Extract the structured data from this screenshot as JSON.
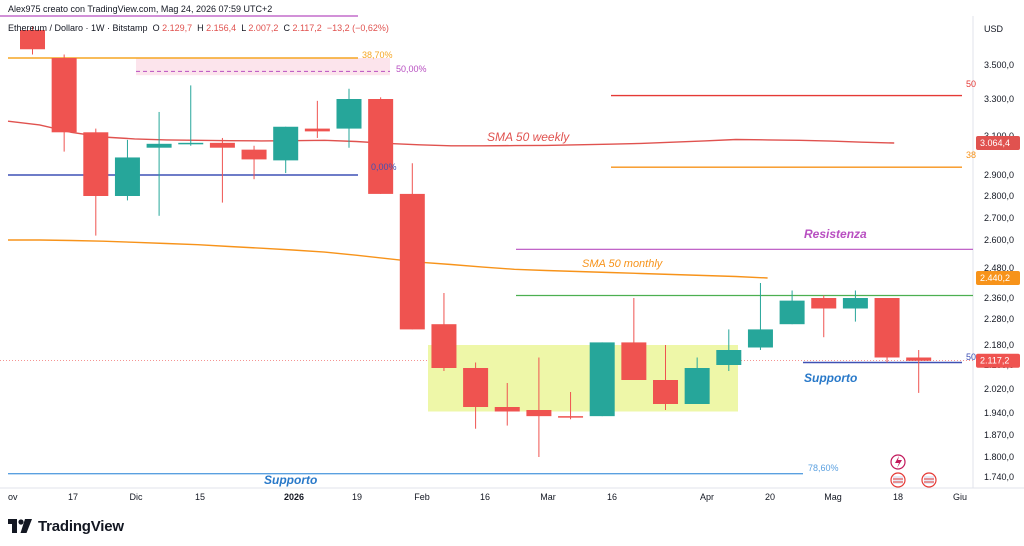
{
  "header": {
    "attribution": "Alex975 creato con TradingView.com, Mag 24, 2026 07:59 UTC+2",
    "symbol": "Ethereum / Dollaro · 1W · Bitstamp",
    "o_label": "O",
    "o_value": "2.129,7",
    "h_label": "H",
    "h_value": "2.156,4",
    "l_label": "L",
    "l_value": "2.007,2",
    "c_label": "C",
    "c_value": "2.117,2",
    "change": "−13,2 (−0,62%)"
  },
  "axis": {
    "currency": "USD",
    "price_labels": [
      "3.500,0",
      "3.300,0",
      "3.100,0",
      "2.900,0",
      "2.800,0",
      "2.700,0",
      "2.600,0",
      "2.480,0",
      "2.360,0",
      "2.280,0",
      "2.180,0",
      "2.100,0",
      "2.020,0",
      "1.940,0",
      "1.870,0",
      "1.800,0",
      "1.740,0"
    ],
    "time_labels": [
      "ov",
      "17",
      "Dic",
      "15",
      "2026",
      "19",
      "Feb",
      "16",
      "Mar",
      "16",
      "Apr",
      "20",
      "Mag",
      "18",
      "Giu"
    ]
  },
  "badges": {
    "sma_weekly_value": "3.064,4",
    "sma_monthly_value": "2.440,2",
    "last_price_value": "2.117,2"
  },
  "annotations": {
    "sma_weekly": "SMA 50 weekly",
    "sma_monthly": "SMA 50 monthly",
    "resistance": "Resistenza",
    "support_right": "Supporto",
    "support_bottom": "Supporto",
    "fib_3870": "38,70%",
    "fib_50": "50,00%",
    "fib_0": "0,00%",
    "fib_7860": "78,60%",
    "edge_50": "50",
    "edge_38": "38",
    "edge_50b": "50"
  },
  "brand": {
    "name": "TradingView"
  },
  "colors": {
    "up": "#26a69a",
    "down": "#ef5350",
    "sma_weekly": "#e0524f",
    "sma_monthly": "#f7931a",
    "resistance": "#b84fc1",
    "support": "#2196f3",
    "green_line": "#4caf50",
    "zone": "#eef7a8"
  },
  "chart_data": {
    "type": "candlestick",
    "title": "Ethereum / Dollaro · 1W · Bitstamp",
    "ylabel": "USD",
    "ylim": [
      1720,
      3620
    ],
    "candles": [
      {
        "o": 3700,
        "h": 3720,
        "l": 3560,
        "c": 3590
      },
      {
        "o": 3540,
        "h": 3560,
        "l": 3020,
        "c": 3120
      },
      {
        "o": 3120,
        "h": 3140,
        "l": 2620,
        "c": 2800
      },
      {
        "o": 2800,
        "h": 3080,
        "l": 2780,
        "c": 2990
      },
      {
        "o": 3040,
        "h": 3230,
        "l": 2710,
        "c": 3060
      },
      {
        "o": 3060,
        "h": 3380,
        "l": 3050,
        "c": 3065
      },
      {
        "o": 3065,
        "h": 3090,
        "l": 2770,
        "c": 3040
      },
      {
        "o": 3030,
        "h": 3050,
        "l": 2880,
        "c": 2980
      },
      {
        "o": 2975,
        "h": 3150,
        "l": 2910,
        "c": 3150
      },
      {
        "o": 3140,
        "h": 3290,
        "l": 3090,
        "c": 3125
      },
      {
        "o": 3140,
        "h": 3360,
        "l": 3040,
        "c": 3300
      },
      {
        "o": 3300,
        "h": 3310,
        "l": 2810,
        "c": 2810
      },
      {
        "o": 2810,
        "h": 2960,
        "l": 2240,
        "c": 2240
      },
      {
        "o": 2260,
        "h": 2380,
        "l": 2080,
        "c": 2090
      },
      {
        "o": 2090,
        "h": 2110,
        "l": 1890,
        "c": 1960
      },
      {
        "o": 1960,
        "h": 2040,
        "l": 1900,
        "c": 1945
      },
      {
        "o": 1950,
        "h": 2130,
        "l": 1800,
        "c": 1930
      },
      {
        "o": 1930,
        "h": 2010,
        "l": 1920,
        "c": 1928
      },
      {
        "o": 1930,
        "h": 2190,
        "l": 1930,
        "c": 2190
      },
      {
        "o": 2190,
        "h": 2360,
        "l": 2050,
        "c": 2050
      },
      {
        "o": 2050,
        "h": 2180,
        "l": 1950,
        "c": 1970
      },
      {
        "o": 1970,
        "h": 2130,
        "l": 1970,
        "c": 2090
      },
      {
        "o": 2100,
        "h": 2240,
        "l": 2080,
        "c": 2160
      },
      {
        "o": 2170,
        "h": 2420,
        "l": 2160,
        "c": 2240
      },
      {
        "o": 2260,
        "h": 2390,
        "l": 2260,
        "c": 2350
      },
      {
        "o": 2360,
        "h": 2370,
        "l": 2210,
        "c": 2320
      },
      {
        "o": 2320,
        "h": 2390,
        "l": 2270,
        "c": 2360
      },
      {
        "o": 2360,
        "h": 2360,
        "l": 2110,
        "c": 2130
      },
      {
        "o": 2130,
        "h": 2160,
        "l": 2007,
        "c": 2117
      }
    ],
    "sma_weekly": [
      3180,
      3160,
      3120,
      3095,
      3085,
      3080,
      3078,
      3076,
      3075,
      3076,
      3078,
      3072,
      3062,
      3055,
      3050,
      3050,
      3051,
      3052,
      3055,
      3058,
      3062,
      3068,
      3075,
      3082,
      3080,
      3078,
      3074,
      3068,
      3064
    ],
    "sma_monthly": [
      2600,
      2600,
      2598,
      2595,
      2590,
      2585,
      2580,
      2572,
      2565,
      2557,
      2548,
      2535,
      2520,
      2505,
      2495,
      2484,
      2475,
      2470,
      2466,
      2462,
      2458,
      2454,
      2450,
      2446,
      2440
    ],
    "levels": {
      "blue_line": 2900,
      "support_bottom": 1750,
      "resistance": 2560,
      "green_line": 2370,
      "support_right": 2110,
      "red_line": 3320,
      "orange_line": 2940,
      "fib_3870": 3540,
      "fib_50": 3480
    },
    "zone": {
      "from": 1945,
      "to": 2180
    }
  }
}
